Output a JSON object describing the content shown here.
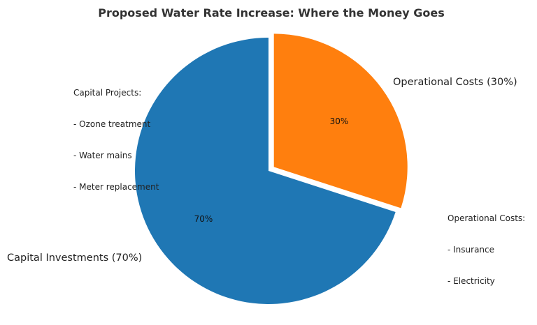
{
  "chart_data": {
    "type": "pie",
    "title": "Proposed Water Rate Increase: Where the Money Goes",
    "slices": [
      {
        "label": "Capital Investments (70%)",
        "value": 70,
        "pct_label": "70%",
        "color": "#1f77b4",
        "explode": 0
      },
      {
        "label": "Operational Costs (30%)",
        "value": 30,
        "pct_label": "30%",
        "color": "#ff7f0e",
        "explode": 0.05
      }
    ],
    "start_angle_deg": 90,
    "direction": "clockwise"
  },
  "annotations": [
    {
      "title": "Capital Projects:",
      "items": [
        "- Ozone treatment",
        "- Water mains",
        "- Meter replacement"
      ]
    },
    {
      "title": "Operational Costs:",
      "items": [
        "- Insurance",
        "- Electricity"
      ]
    }
  ]
}
